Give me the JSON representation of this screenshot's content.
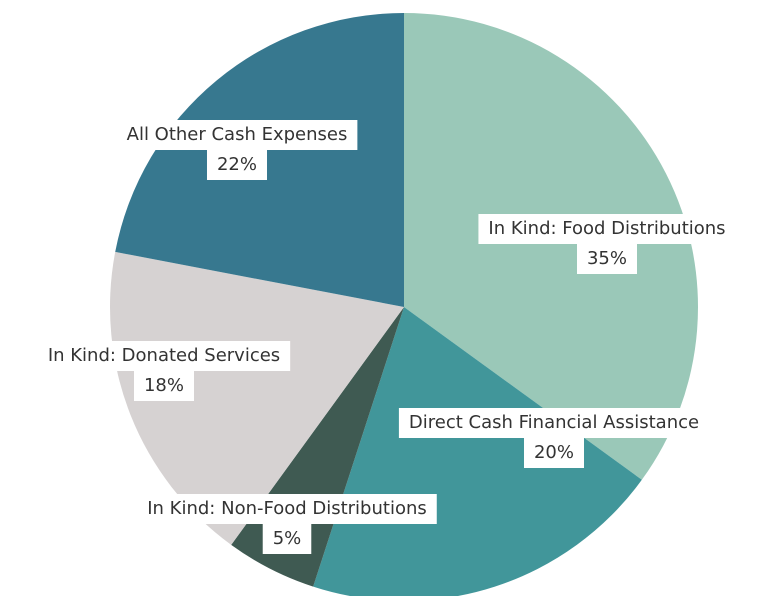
{
  "chart_data": {
    "type": "pie",
    "categories": [
      "In Kind: Food Distributions",
      "Direct Cash Financial Assistance",
      "In Kind: Non-Food Distributions",
      "In Kind: Donated Services",
      "All Other Cash Expenses"
    ],
    "values": [
      35,
      20,
      5,
      18,
      22
    ],
    "value_labels": [
      "35%",
      "20%",
      "5%",
      "18%",
      "22%"
    ],
    "colors": [
      "#9ac8b8",
      "#41969a",
      "#3f5a52",
      "#d6d2d2",
      "#37788f"
    ]
  }
}
